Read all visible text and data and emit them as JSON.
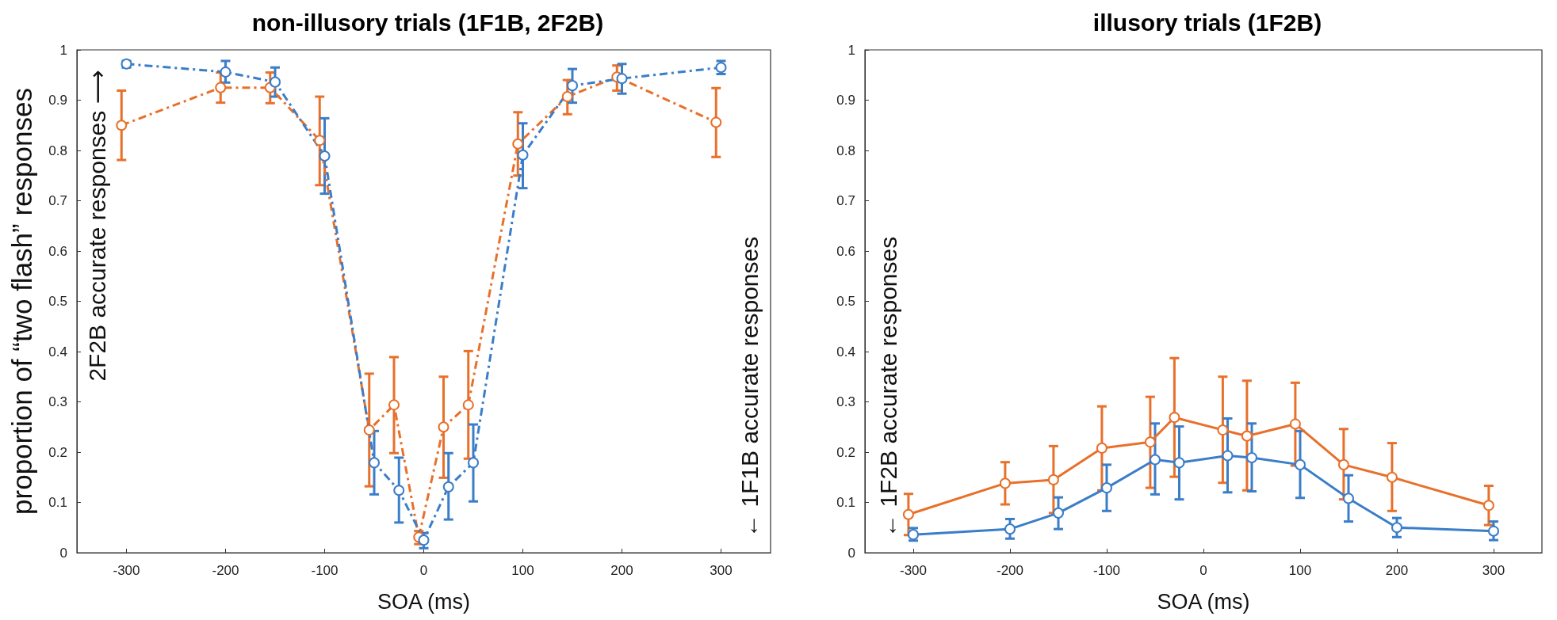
{
  "chart_data": [
    {
      "type": "line",
      "title": "non-illusory trials (1F1B, 2F2B)",
      "xlabel": "SOA (ms)",
      "ylabel": "proportion of “two flash” responses",
      "annotations": [
        "2F2B accurate responses ⟶",
        "← 1F1B accurate responses"
      ],
      "xlim": [
        -350,
        350
      ],
      "xticks": [
        -300,
        -200,
        -100,
        0,
        100,
        200,
        300
      ],
      "ylim": [
        0,
        1
      ],
      "yticks": [
        0,
        0.1,
        0.2,
        0.3,
        0.4,
        0.5,
        0.6,
        0.7,
        0.8,
        0.9,
        1
      ],
      "grid": false,
      "marker": "circle",
      "line_style": "dashed",
      "series": [
        {
          "color": "#e8702a",
          "x": [
            -305,
            -205,
            -155,
            -105,
            -55,
            -30,
            -5,
            20,
            45,
            95,
            145,
            195,
            295
          ],
          "values": [
            0.85,
            0.925,
            0.925,
            0.82,
            0.244,
            0.294,
            0.031,
            0.25,
            0.294,
            0.813,
            0.907,
            0.946,
            0.856
          ],
          "errors": [
            [
              0.781,
              0.919
            ],
            [
              0.895,
              0.955
            ],
            [
              0.894,
              0.955
            ],
            [
              0.731,
              0.907
            ],
            [
              0.132,
              0.356
            ],
            [
              0.198,
              0.389
            ],
            [
              0.017,
              0.043
            ],
            [
              0.149,
              0.35
            ],
            [
              0.187,
              0.401
            ],
            [
              0.75,
              0.876
            ],
            [
              0.872,
              0.94
            ],
            [
              0.919,
              0.969
            ],
            [
              0.787,
              0.924
            ]
          ]
        },
        {
          "color": "#3a7dc9",
          "x": [
            -300,
            -200,
            -150,
            -100,
            -50,
            -25,
            0,
            25,
            50,
            100,
            150,
            200,
            300
          ],
          "values": [
            0.972,
            0.956,
            0.936,
            0.789,
            0.179,
            0.124,
            0.025,
            0.131,
            0.179,
            0.791,
            0.929,
            0.943,
            0.965
          ],
          "errors": [
            [
              0.965,
              0.978
            ],
            [
              0.935,
              0.978
            ],
            [
              0.907,
              0.965
            ],
            [
              0.714,
              0.864
            ],
            [
              0.116,
              0.242
            ],
            [
              0.06,
              0.189
            ],
            [
              0.009,
              0.039
            ],
            [
              0.066,
              0.198
            ],
            [
              0.102,
              0.255
            ],
            [
              0.725,
              0.854
            ],
            [
              0.895,
              0.962
            ],
            [
              0.913,
              0.972
            ],
            [
              0.952,
              0.978
            ]
          ]
        }
      ]
    },
    {
      "type": "line",
      "title": "illusory trials (1F2B)",
      "xlabel": "SOA (ms)",
      "annotations": [
        "← 1F2B accurate responses"
      ],
      "xlim": [
        -350,
        350
      ],
      "xticks": [
        -300,
        -200,
        -100,
        0,
        100,
        200,
        300
      ],
      "ylim": [
        0,
        1
      ],
      "yticks": [
        0,
        0.1,
        0.2,
        0.3,
        0.4,
        0.5,
        0.6,
        0.7,
        0.8,
        0.9,
        1
      ],
      "grid": false,
      "marker": "circle",
      "line_style": "solid",
      "series": [
        {
          "color": "#e8702a",
          "x": [
            -305,
            -205,
            -155,
            -105,
            -55,
            -30,
            20,
            45,
            95,
            145,
            195,
            295
          ],
          "values": [
            0.076,
            0.138,
            0.145,
            0.208,
            0.22,
            0.269,
            0.244,
            0.232,
            0.256,
            0.175,
            0.15,
            0.094
          ],
          "errors": [
            [
              0.035,
              0.117
            ],
            [
              0.096,
              0.18
            ],
            [
              0.079,
              0.212
            ],
            [
              0.124,
              0.291
            ],
            [
              0.129,
              0.31
            ],
            [
              0.151,
              0.387
            ],
            [
              0.139,
              0.35
            ],
            [
              0.124,
              0.342
            ],
            [
              0.173,
              0.338
            ],
            [
              0.106,
              0.246
            ],
            [
              0.083,
              0.218
            ],
            [
              0.055,
              0.133
            ]
          ]
        },
        {
          "color": "#3a7dc9",
          "x": [
            -300,
            -200,
            -150,
            -100,
            -50,
            -25,
            25,
            50,
            100,
            150,
            200,
            300
          ],
          "values": [
            0.036,
            0.047,
            0.079,
            0.129,
            0.185,
            0.179,
            0.193,
            0.189,
            0.175,
            0.108,
            0.05,
            0.043
          ],
          "errors": [
            [
              0.024,
              0.049
            ],
            [
              0.028,
              0.067
            ],
            [
              0.047,
              0.11
            ],
            [
              0.083,
              0.175
            ],
            [
              0.116,
              0.257
            ],
            [
              0.106,
              0.251
            ],
            [
              0.12,
              0.267
            ],
            [
              0.122,
              0.257
            ],
            [
              0.109,
              0.242
            ],
            [
              0.062,
              0.154
            ],
            [
              0.031,
              0.069
            ],
            [
              0.025,
              0.062
            ]
          ]
        }
      ]
    }
  ]
}
